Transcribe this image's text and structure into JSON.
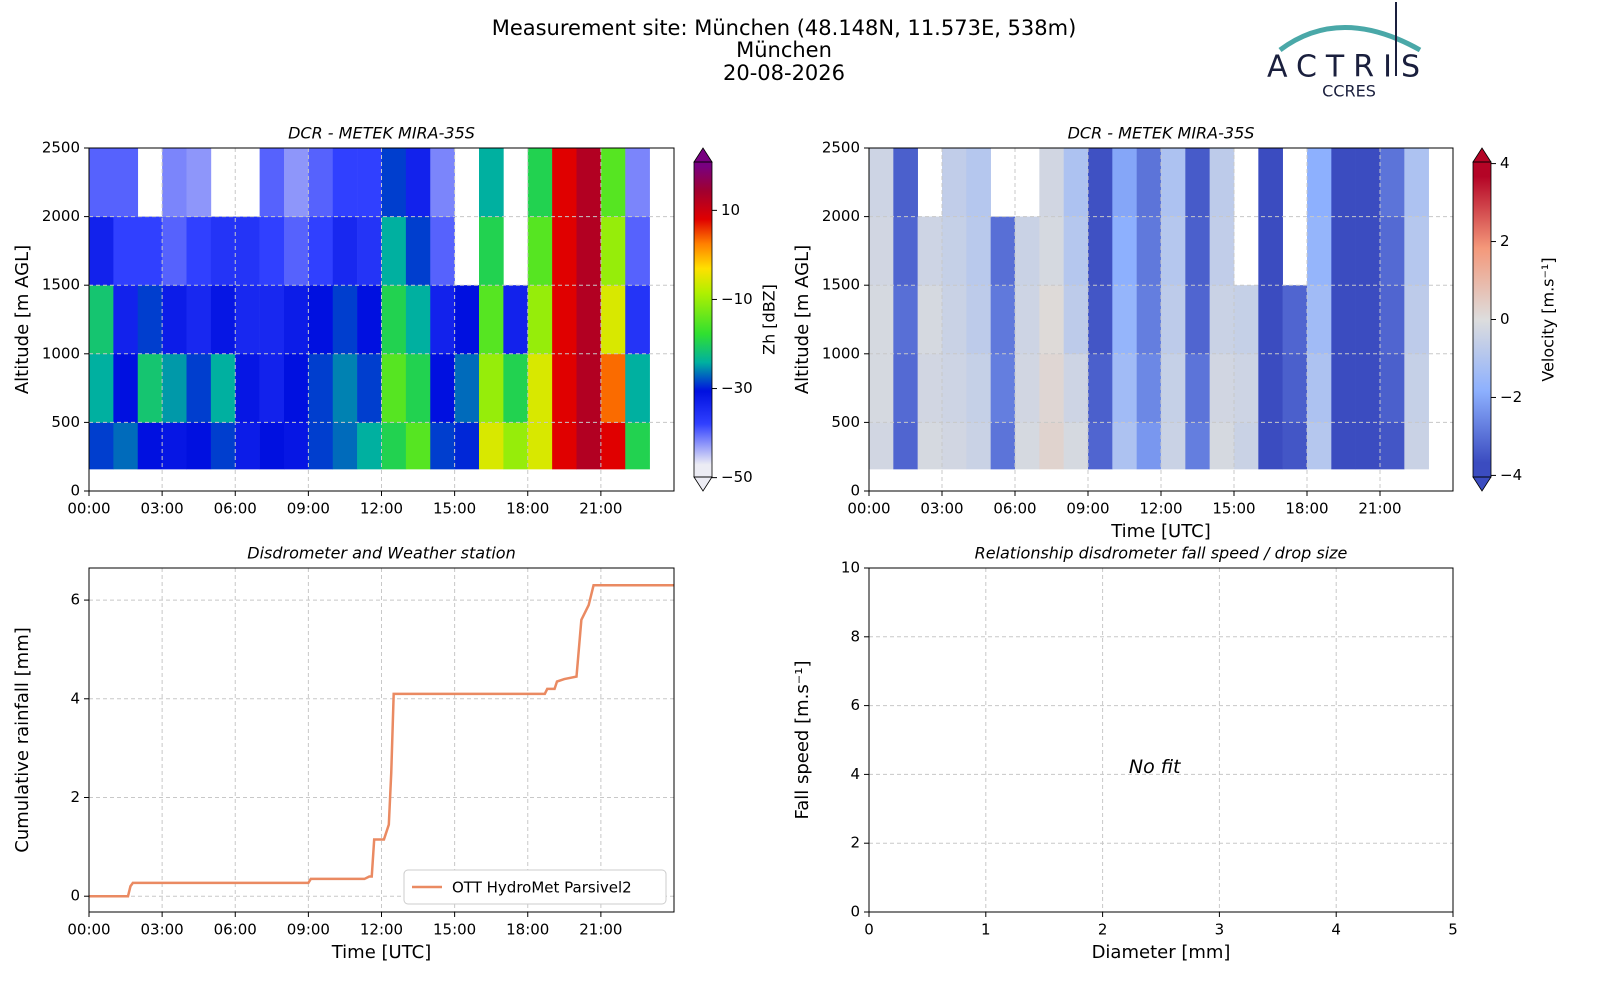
{
  "header": {
    "title": [
      "Measurement site: München (48.148N, 11.573E, 538m)",
      "München",
      "20-08-2026"
    ],
    "logo": {
      "name": "ACTRIS",
      "subtitle": "CCRES"
    }
  },
  "chart_data": [
    {
      "type": "heatmap",
      "title": "DCR - METEK MIRA-35S",
      "ylabel": "Altitude [m AGL]",
      "xlim": [
        0,
        24
      ],
      "xticks": [
        {
          "value": 0,
          "label": "00:00"
        },
        {
          "value": 3,
          "label": "03:00"
        },
        {
          "value": 6,
          "label": "06:00"
        },
        {
          "value": 9,
          "label": "09:00"
        },
        {
          "value": 12,
          "label": "12:00"
        },
        {
          "value": 15,
          "label": "15:00"
        },
        {
          "value": 18,
          "label": "18:00"
        },
        {
          "value": 21,
          "label": "21:00"
        }
      ],
      "ylim": [
        0,
        2500
      ],
      "yticks": [
        0,
        500,
        1000,
        1500,
        2000,
        2500
      ],
      "grid": true,
      "xbins": [
        0,
        1,
        2,
        3,
        4,
        5,
        6,
        7,
        8,
        9,
        10,
        11,
        12,
        13,
        14,
        15,
        16,
        17,
        18,
        19,
        20,
        21,
        22,
        23,
        24
      ],
      "ybins": [
        160,
        500,
        1000,
        1500,
        2000,
        2500
      ],
      "z": [
        [
          -30,
          -28,
          -32,
          -33,
          -32,
          -30,
          -34,
          -32,
          -33,
          -30,
          -28,
          -25,
          -20,
          -15,
          -30,
          -31,
          -5,
          -10,
          -5,
          10,
          15,
          10,
          -20,
          null
        ],
        [
          -25,
          -32,
          -22,
          -26,
          -30,
          -25,
          -33,
          -35,
          -32,
          -30,
          -27,
          -30,
          -15,
          -20,
          -32,
          -28,
          -10,
          -20,
          -5,
          10,
          15,
          5,
          -25,
          null
        ],
        [
          -22,
          -35,
          -30,
          -34,
          -36,
          -33,
          -36,
          -36,
          -34,
          -32,
          -30,
          -32,
          -20,
          -25,
          -35,
          -32,
          -15,
          -35,
          -10,
          10,
          15,
          -5,
          -38,
          null
        ],
        [
          -35,
          -40,
          -40,
          -42,
          -40,
          -38,
          -38,
          -40,
          -42,
          -40,
          -36,
          -38,
          -25,
          -30,
          -42,
          null,
          -20,
          null,
          -15,
          10,
          15,
          -10,
          -42,
          null
        ],
        [
          -42,
          -42,
          null,
          -44,
          -45,
          null,
          null,
          -42,
          -45,
          -42,
          -40,
          -40,
          -30,
          -35,
          -44,
          null,
          -25,
          null,
          -20,
          10,
          15,
          -15,
          -44,
          null
        ]
      ],
      "zlim": [
        -53,
        24
      ],
      "zticks": [
        {
          "value": -50,
          "label": "−50"
        },
        {
          "value": -30,
          "label": "−30"
        },
        {
          "value": -10,
          "label": "−10"
        },
        10
      ],
      "zlabel": "Zh [dBZ]",
      "colorscale": [
        [
          -50,
          "#ececf4"
        ],
        [
          -40,
          "#3040ff"
        ],
        [
          -32,
          "#0010e0"
        ],
        [
          -25,
          "#00b0a0"
        ],
        [
          -18,
          "#30e030"
        ],
        [
          -8,
          "#b0f000"
        ],
        [
          -2,
          "#ffe000"
        ],
        [
          4,
          "#ff8000"
        ],
        [
          10,
          "#e00000"
        ],
        [
          17,
          "#a00030"
        ],
        [
          23,
          "#780080"
        ]
      ]
    },
    {
      "type": "heatmap",
      "title": "DCR - METEK MIRA-35S",
      "ylabel": "Altitude [m AGL]",
      "xlabel": "Time [UTC]",
      "xlim": [
        0,
        24
      ],
      "xticks": [
        {
          "value": 0,
          "label": "00:00"
        },
        {
          "value": 3,
          "label": "03:00"
        },
        {
          "value": 6,
          "label": "06:00"
        },
        {
          "value": 9,
          "label": "09:00"
        },
        {
          "value": 12,
          "label": "12:00"
        },
        {
          "value": 15,
          "label": "15:00"
        },
        {
          "value": 18,
          "label": "18:00"
        },
        {
          "value": 21,
          "label": "21:00"
        }
      ],
      "ylim": [
        0,
        2500
      ],
      "yticks": [
        0,
        500,
        1000,
        1500,
        2000,
        2500
      ],
      "grid": true,
      "xbins": [
        0,
        1,
        2,
        3,
        4,
        5,
        6,
        7,
        8,
        9,
        10,
        11,
        12,
        13,
        14,
        15,
        16,
        17,
        18,
        19,
        20,
        21,
        22,
        23,
        24
      ],
      "ybins": [
        160,
        500,
        1000,
        1500,
        2000,
        2500
      ],
      "z": [
        [
          -0.3,
          -3.5,
          -0.2,
          -0.3,
          -0.5,
          -3.2,
          -0.2,
          0.3,
          -0.2,
          -3.5,
          -1.2,
          -2.5,
          -0.5,
          -3.0,
          -0.2,
          -0.5,
          -4.0,
          -3.8,
          -1.0,
          -4.0,
          -4.0,
          -3.8,
          -0.5,
          null
        ],
        [
          -0.2,
          -3.4,
          -0.3,
          -0.4,
          -0.6,
          -3.0,
          -0.3,
          0.2,
          -0.4,
          -3.6,
          -1.5,
          -2.8,
          -0.6,
          -3.2,
          -0.3,
          -0.4,
          -4.0,
          -3.6,
          -1.2,
          -4.0,
          -4.0,
          -3.6,
          -0.6,
          null
        ],
        [
          -0.2,
          -3.3,
          -0.2,
          -0.5,
          -0.8,
          -3.1,
          -0.4,
          0.1,
          -0.8,
          -3.8,
          -1.8,
          -3.0,
          -0.8,
          -3.5,
          -0.5,
          -0.6,
          -4.0,
          -3.5,
          -1.5,
          -4.0,
          -4.0,
          -3.5,
          -0.8,
          null
        ],
        [
          -0.3,
          -3.5,
          -0.4,
          -0.6,
          -0.9,
          -3.3,
          -0.5,
          -0.2,
          -1.0,
          -3.9,
          -2.0,
          -3.1,
          -1.0,
          -3.6,
          -0.7,
          null,
          -4.0,
          null,
          -1.8,
          -4.0,
          -4.0,
          -3.4,
          -1.0,
          null
        ],
        [
          -0.4,
          -3.6,
          null,
          -0.7,
          -1.0,
          null,
          null,
          -0.3,
          -1.2,
          -3.9,
          -2.2,
          -3.2,
          -1.2,
          -3.7,
          -0.8,
          null,
          -4.0,
          null,
          -2.0,
          -4.0,
          -4.0,
          -3.2,
          -1.2,
          null
        ]
      ],
      "zlim": [
        -4.4,
        4.4
      ],
      "zticks": [
        {
          "value": -4,
          "label": "−4"
        },
        {
          "value": -2,
          "label": "−2"
        },
        0,
        2,
        4
      ],
      "zlabel": "Velocity [m.s⁻¹]",
      "colorscale": [
        [
          -4,
          "#3b4cc0"
        ],
        [
          -2,
          "#8db0fe"
        ],
        [
          0,
          "#dddddd"
        ],
        [
          2,
          "#f4987a"
        ],
        [
          4,
          "#b40426"
        ]
      ]
    },
    {
      "type": "line",
      "title": "Disdrometer and Weather station",
      "xlabel": "Time [UTC]",
      "ylabel": "Cumulative rainfall [mm]",
      "xlim": [
        0,
        24
      ],
      "xticks": [
        {
          "value": 0,
          "label": "00:00"
        },
        {
          "value": 3,
          "label": "03:00"
        },
        {
          "value": 6,
          "label": "06:00"
        },
        {
          "value": 9,
          "label": "09:00"
        },
        {
          "value": 12,
          "label": "12:00"
        },
        {
          "value": 15,
          "label": "15:00"
        },
        {
          "value": 18,
          "label": "18:00"
        },
        {
          "value": 21,
          "label": "21:00"
        }
      ],
      "ylim": [
        -0.32,
        6.65
      ],
      "yticks": [
        0,
        2,
        4,
        6
      ],
      "grid": true,
      "legend": "lower right",
      "series": [
        {
          "name": "OTT HydroMet Parsivel2",
          "color": "#ea8a62",
          "x": [
            0,
            1.6,
            1.7,
            1.8,
            9.0,
            9.1,
            11.3,
            11.5,
            11.6,
            11.7,
            12.1,
            12.3,
            12.4,
            12.5,
            18.7,
            18.8,
            19.1,
            19.2,
            19.5,
            20.0,
            20.2,
            20.5,
            20.7,
            24
          ],
          "values": [
            0,
            0,
            0.2,
            0.27,
            0.27,
            0.35,
            0.35,
            0.4,
            0.4,
            1.15,
            1.15,
            1.45,
            2.5,
            4.1,
            4.1,
            4.2,
            4.2,
            4.35,
            4.4,
            4.45,
            5.6,
            5.9,
            6.3,
            6.3
          ]
        }
      ]
    },
    {
      "type": "scatter",
      "title": "Relationship disdrometer fall speed / drop size",
      "xlabel": "Diameter [mm]",
      "ylabel": "Fall speed [m.s⁻¹]",
      "xlim": [
        0,
        5
      ],
      "xticks": [
        0,
        1,
        2,
        3,
        4,
        5
      ],
      "ylim": [
        0,
        10
      ],
      "yticks": [
        0,
        2,
        4,
        6,
        8,
        10
      ],
      "grid": true,
      "annotation": "No fit"
    }
  ]
}
